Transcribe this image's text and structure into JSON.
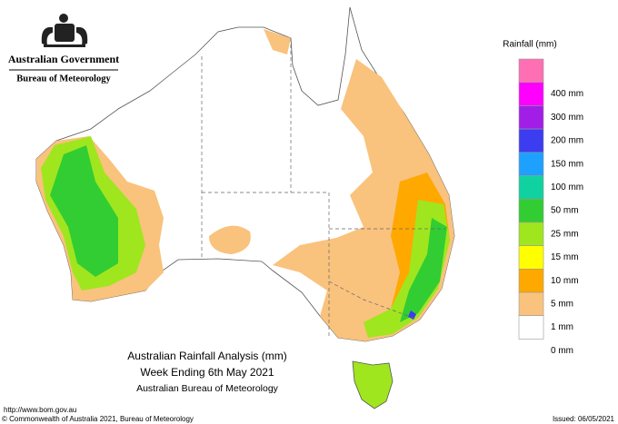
{
  "header": {
    "government": "Australian Government",
    "agency": "Bureau of Meteorology"
  },
  "map": {
    "title": "Australian Rainfall Analysis (mm)",
    "subtitle": "Week Ending 6th May 2021",
    "credit": "Australian Bureau of Meteorology"
  },
  "legend": {
    "title": "Rainfall (mm)",
    "labels": [
      null,
      "400 mm",
      "300 mm",
      "200 mm",
      "150 mm",
      "100 mm",
      "50 mm",
      "25 mm",
      "15 mm",
      "10 mm",
      "5 mm",
      "1 mm",
      "0 mm"
    ],
    "colors": [
      "#ff6fb4",
      "#ff00ff",
      "#a21ee6",
      "#3c3cf0",
      "#1ea0ff",
      "#10d2a0",
      "#32cd32",
      "#a0e61e",
      "#ffff00",
      "#ffa800",
      "#f9c27d",
      "#ffffff"
    ]
  },
  "footer": {
    "url": "http://www.bom.gov.au",
    "copyright": "© Commonwealth of Australia 2021, Bureau of Meteorology",
    "issued": "Issued: 06/05/2021"
  }
}
